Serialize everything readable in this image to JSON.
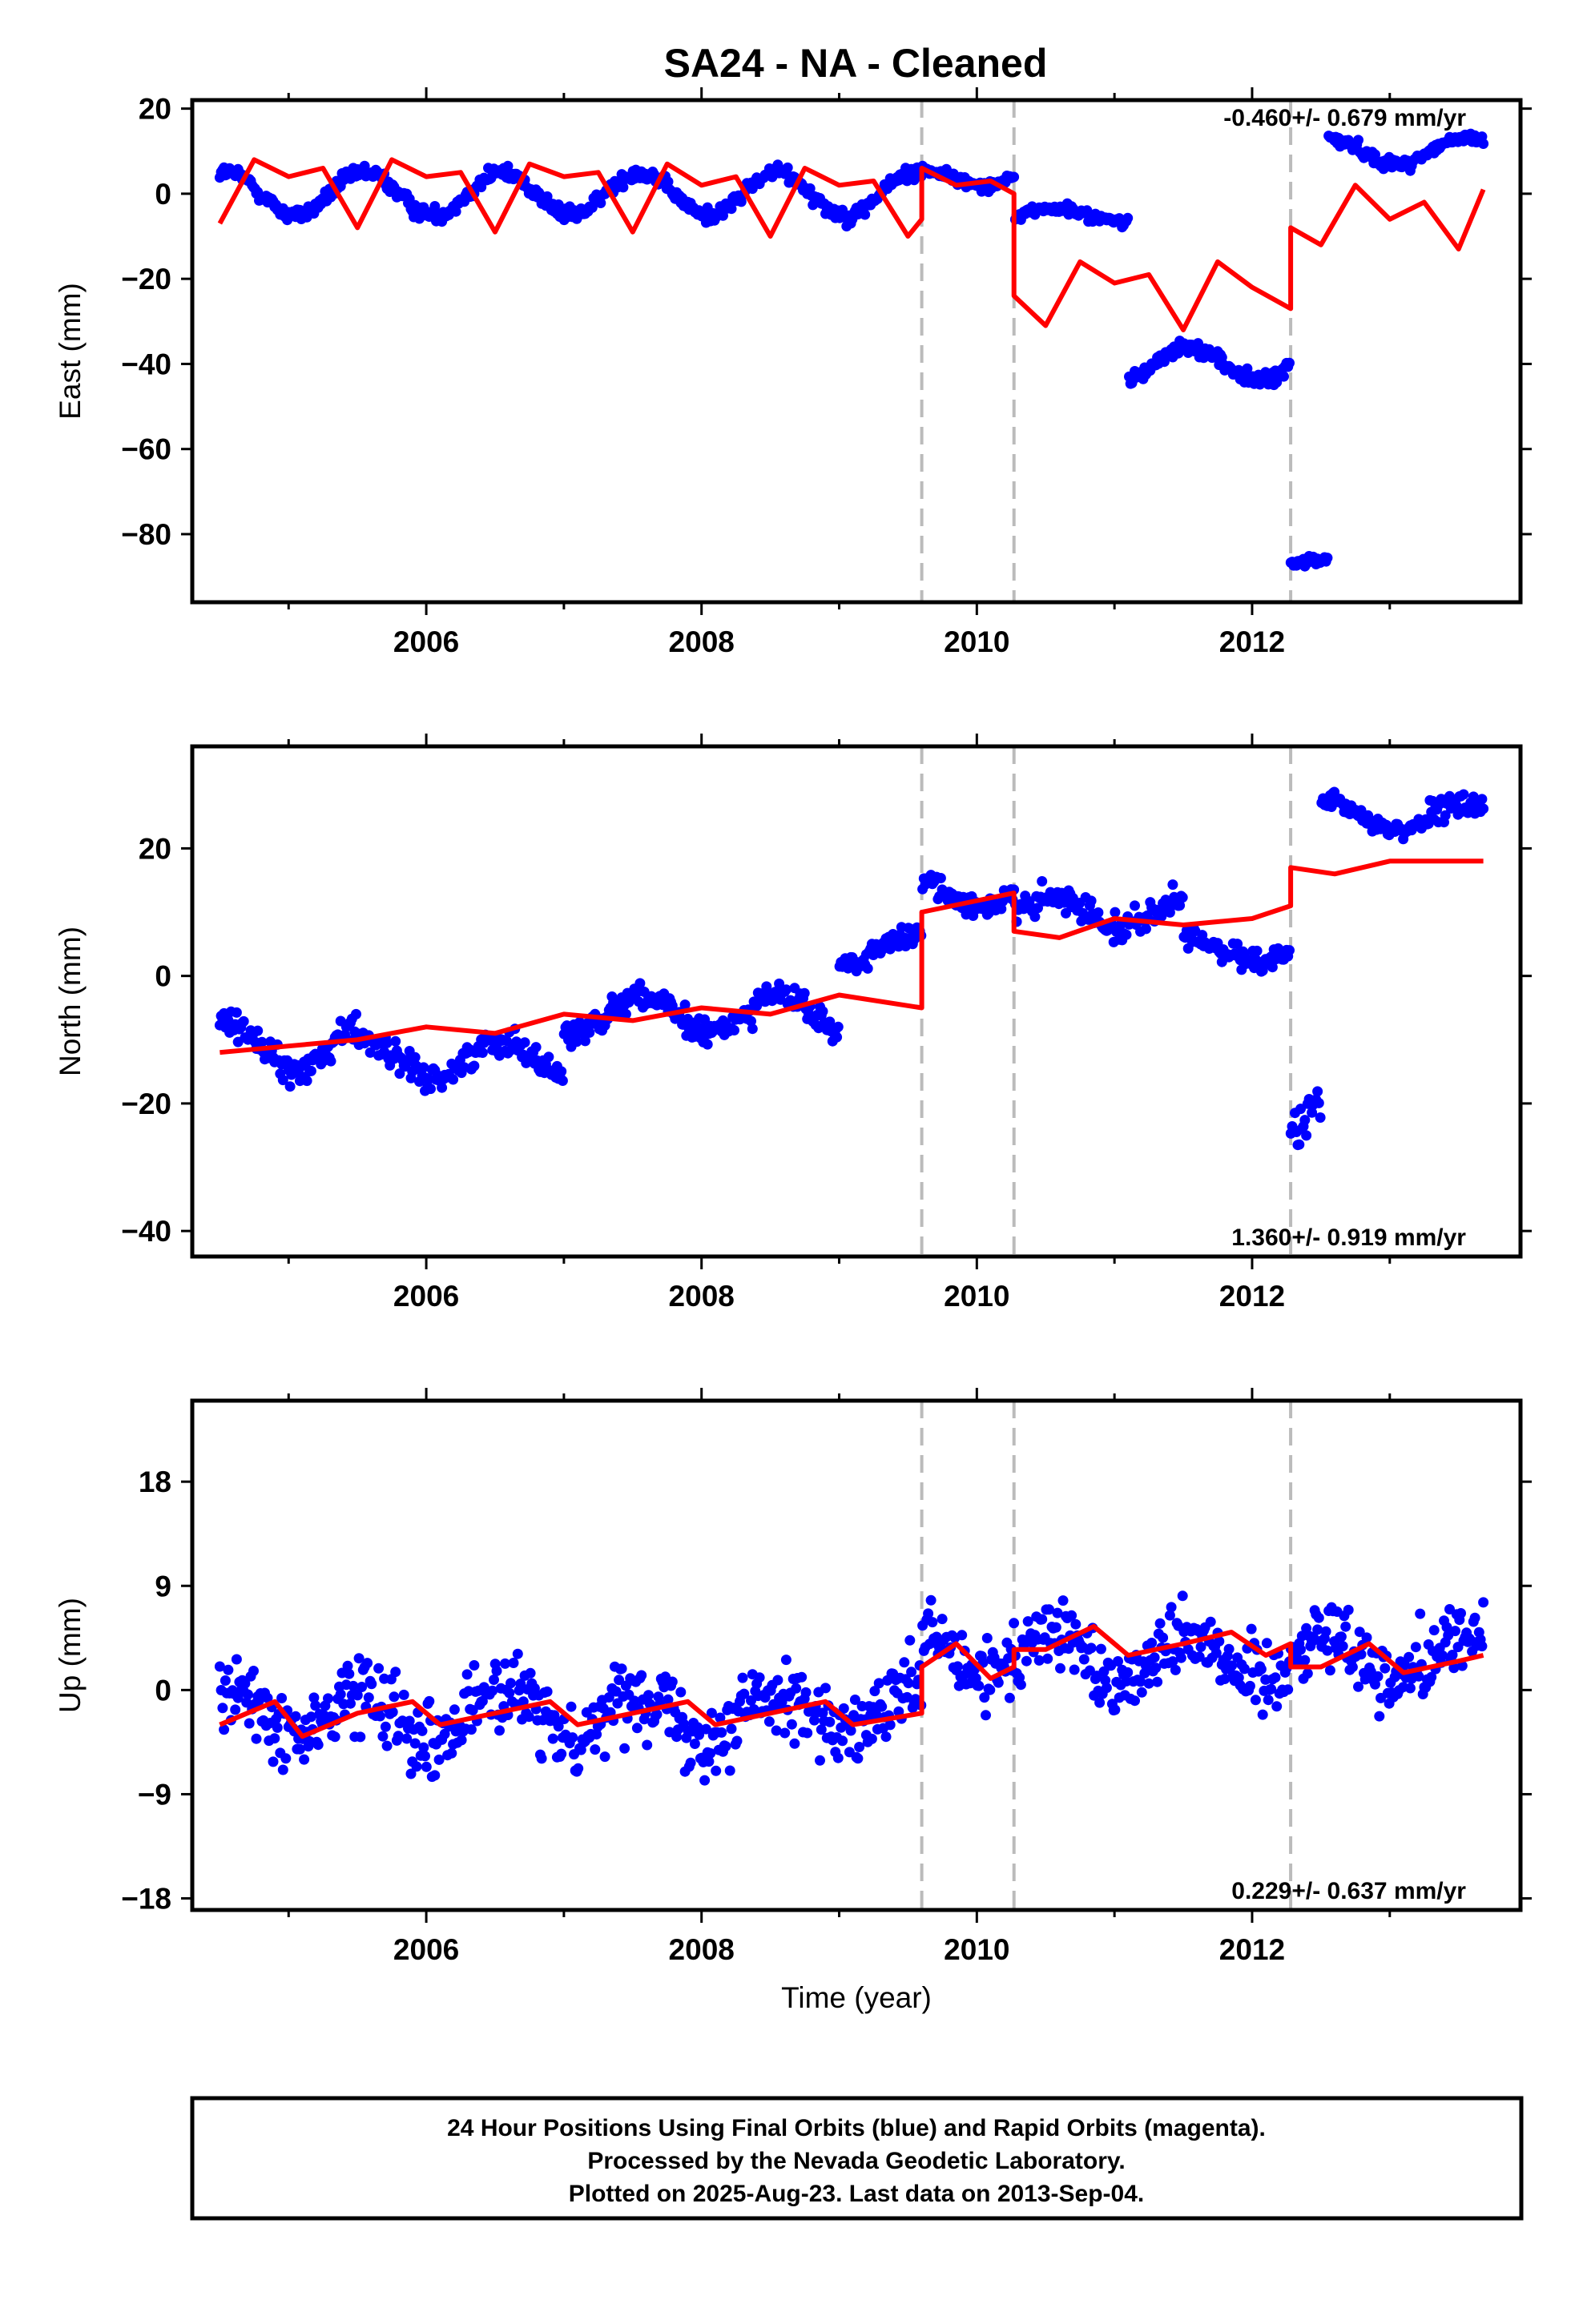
{
  "title": "SA24  - NA - Cleaned",
  "footer": {
    "lines": [
      "24 Hour Positions Using Final Orbits (blue) and Rapid Orbits (magenta).",
      "Processed by the Nevada Geodetic Laboratory.",
      "Plotted on 2025-Aug-23. Last data on 2013-Sep-04."
    ]
  },
  "colors": {
    "data": "#0000ff",
    "model": "#ff0000",
    "event_lines": "#bbbbbb",
    "frame": "#000000"
  },
  "chart_data": [
    {
      "type": "scatter",
      "title": "SA24  - NA - Cleaned",
      "xlabel": "",
      "ylabel": "East (mm)",
      "xlim": [
        2004.3,
        2013.95
      ],
      "ylim": [
        -96,
        22
      ],
      "xticks": [
        2006,
        2008,
        2010,
        2012
      ],
      "yticks": [
        20,
        0,
        -20,
        -40,
        -60,
        -80
      ],
      "rate_label": "-0.460+/- 0.679 mm/yr",
      "rate_position": "top-right",
      "event_lines": [
        2009.6,
        2010.27,
        2012.28
      ],
      "series": [
        {
          "role": "observations",
          "x_start": 2004.5,
          "x_end": 2013.68,
          "mean_segments": [
            {
              "from": 2004.5,
              "to": 2009.6,
              "base": 0,
              "amp": 5,
              "noise": 2.5
            },
            {
              "from": 2009.6,
              "to": 2010.27,
              "base": 4,
              "amp": 2,
              "noise": 2
            },
            {
              "from": 2010.27,
              "to": 2011.1,
              "base": -5,
              "amp": 1.5,
              "noise": 1.8
            },
            {
              "from": 2011.1,
              "to": 2012.28,
              "base": -40,
              "amp": 4,
              "noise": 2.5
            },
            {
              "from": 2012.28,
              "to": 2012.55,
              "base": -87,
              "amp": 1,
              "noise": 2
            },
            {
              "from": 2012.55,
              "to": 2013.68,
              "base": 10,
              "amp": 3,
              "noise": 2
            }
          ]
        },
        {
          "role": "model",
          "x": [
            2004.5,
            2004.75,
            2005.0,
            2005.25,
            2005.5,
            2005.75,
            2006.0,
            2006.25,
            2006.5,
            2006.75,
            2007.0,
            2007.25,
            2007.5,
            2007.75,
            2008.0,
            2008.25,
            2008.5,
            2008.75,
            2009.0,
            2009.25,
            2009.5,
            2009.6,
            2009.6,
            2009.85,
            2010.1,
            2010.27,
            2010.27,
            2010.5,
            2010.75,
            2011.0,
            2011.25,
            2011.5,
            2011.75,
            2012.0,
            2012.28,
            2012.28,
            2012.5,
            2012.75,
            2013.0,
            2013.25,
            2013.5,
            2013.68
          ],
          "y": [
            -7,
            8,
            4,
            6,
            -8,
            8,
            4,
            5,
            -9,
            7,
            4,
            5,
            -9,
            7,
            2,
            4,
            -10,
            6,
            2,
            3,
            -10,
            -6,
            6,
            2,
            3,
            0,
            -24,
            -31,
            -16,
            -21,
            -19,
            -32,
            -16,
            -22,
            -27,
            -8,
            -12,
            2,
            -6,
            -2,
            -13,
            1
          ]
        }
      ]
    },
    {
      "type": "scatter",
      "xlabel": "",
      "ylabel": "North (mm)",
      "xlim": [
        2004.3,
        2013.95
      ],
      "ylim": [
        -44,
        36
      ],
      "xticks": [
        2006,
        2008,
        2010,
        2012
      ],
      "yticks": [
        20,
        0,
        -20,
        -40
      ],
      "rate_label": "1.360+/- 0.919 mm/yr",
      "rate_position": "bottom-right",
      "event_lines": [
        2009.6,
        2010.27,
        2012.28
      ],
      "series": [
        {
          "role": "observations",
          "x_start": 2004.5,
          "x_end": 2013.68,
          "mean_segments": [
            {
              "from": 2004.5,
              "to": 2005.5,
              "base": -11,
              "amp": 4,
              "noise": 3
            },
            {
              "from": 2005.5,
              "to": 2007.0,
              "base": -13,
              "amp": 3,
              "noise": 3
            },
            {
              "from": 2007.0,
              "to": 2009.0,
              "base": -6,
              "amp": 3,
              "noise": 3
            },
            {
              "from": 2009.0,
              "to": 2009.6,
              "base": 4,
              "amp": 2,
              "noise": 2.5
            },
            {
              "from": 2009.6,
              "to": 2010.27,
              "base": 13,
              "amp": 2,
              "noise": 3
            },
            {
              "from": 2010.27,
              "to": 2011.5,
              "base": 10,
              "amp": 2,
              "noise": 3
            },
            {
              "from": 2011.5,
              "to": 2012.28,
              "base": 4,
              "amp": 1.5,
              "noise": 2.5
            },
            {
              "from": 2012.28,
              "to": 2012.5,
              "base": -25,
              "amp": 5,
              "noise": 5
            },
            {
              "from": 2012.5,
              "to": 2013.68,
              "base": 25,
              "amp": 2,
              "noise": 2.5
            }
          ]
        },
        {
          "role": "model",
          "x": [
            2004.5,
            2005.0,
            2005.5,
            2006.0,
            2006.5,
            2007.0,
            2007.5,
            2008.0,
            2008.5,
            2009.0,
            2009.6,
            2009.6,
            2010.27,
            2010.27,
            2010.6,
            2011.0,
            2011.5,
            2012.0,
            2012.28,
            2012.28,
            2012.6,
            2013.0,
            2013.68
          ],
          "y": [
            -12,
            -11,
            -10,
            -8,
            -9,
            -6,
            -7,
            -5,
            -6,
            -3,
            -5,
            10,
            13,
            7,
            6,
            9,
            8,
            9,
            11,
            17,
            16,
            18,
            18
          ]
        }
      ]
    },
    {
      "type": "scatter",
      "xlabel": "Time (year)",
      "ylabel": "Up (mm)",
      "xlim": [
        2004.3,
        2013.95
      ],
      "ylim": [
        -19,
        25
      ],
      "xticks": [
        2006,
        2008,
        2010,
        2012
      ],
      "yticks": [
        18,
        9,
        0,
        -9,
        -18
      ],
      "rate_label": "0.229+/- 0.637 mm/yr",
      "rate_position": "bottom-right",
      "event_lines": [
        2009.6,
        2010.27,
        2012.28
      ],
      "series": [
        {
          "role": "observations",
          "x_start": 2004.5,
          "x_end": 2013.68,
          "mean_segments": [
            {
              "from": 2004.5,
              "to": 2009.6,
              "base": -2,
              "amp": 2,
              "noise": 4.5
            },
            {
              "from": 2009.6,
              "to": 2013.68,
              "base": 3,
              "amp": 2,
              "noise": 4.5
            }
          ]
        },
        {
          "role": "model",
          "x": [
            2004.5,
            2004.9,
            2005.1,
            2005.5,
            2005.9,
            2006.1,
            2006.5,
            2006.9,
            2007.1,
            2007.5,
            2007.9,
            2008.1,
            2008.5,
            2008.9,
            2009.1,
            2009.6,
            2009.6,
            2009.85,
            2010.1,
            2010.27,
            2010.27,
            2010.5,
            2010.85,
            2011.1,
            2011.5,
            2011.85,
            2012.1,
            2012.28,
            2012.28,
            2012.5,
            2012.85,
            2013.1,
            2013.5,
            2013.68
          ],
          "y": [
            -3,
            -1,
            -4,
            -2,
            -1,
            -3,
            -2,
            -1,
            -3,
            -2,
            -1,
            -3,
            -2,
            -1,
            -3,
            -2,
            2,
            4,
            1,
            2,
            3.5,
            3.5,
            5.5,
            3,
            4,
            5,
            3,
            4,
            2,
            2,
            4,
            1.5,
            2.5,
            3
          ]
        }
      ]
    }
  ]
}
